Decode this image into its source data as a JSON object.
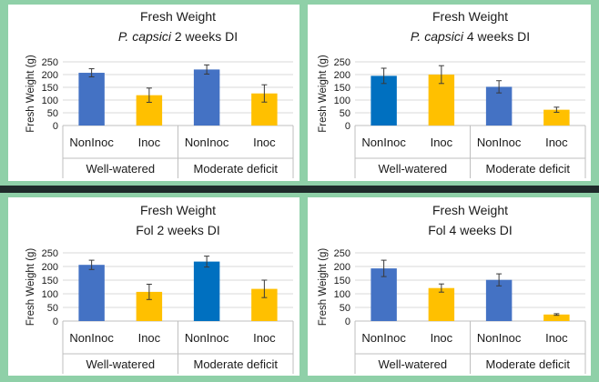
{
  "chart_data": [
    {
      "type": "bar",
      "title": "Fresh Weight",
      "subtitle_italic": "P. capsici",
      "subtitle_rest": " 2 weeks DI",
      "ylabel": "Fresh Weight (g)",
      "ylim": [
        0,
        250
      ],
      "yticks": [
        "0",
        "50",
        "100",
        "150",
        "200",
        "250"
      ],
      "categories": [
        "NonInoc",
        "Inoc",
        "NonInoc",
        "Inoc"
      ],
      "groups": [
        "Well-watered",
        "Moderate deficit"
      ],
      "values": [
        207,
        119,
        220,
        126
      ],
      "errors": [
        16,
        28,
        18,
        34
      ],
      "colors": [
        "#4472C4",
        "#FFC000",
        "#4472C4",
        "#FFC000"
      ],
      "grid": true
    },
    {
      "type": "bar",
      "title": "Fresh Weight",
      "subtitle_italic": "P. capsici",
      "subtitle_rest": " 4 weeks DI",
      "ylabel": "Fresh Weight (g)",
      "ylim": [
        0,
        250
      ],
      "yticks": [
        "0",
        "50",
        "100",
        "150",
        "200",
        "250"
      ],
      "categories": [
        "NonInoc",
        "Inoc",
        "NonInoc",
        "Inoc"
      ],
      "groups": [
        "Well-watered",
        "Moderate deficit"
      ],
      "values": [
        195,
        200,
        152,
        62
      ],
      "errors": [
        30,
        35,
        24,
        10
      ],
      "colors": [
        "#0070C0",
        "#FFC000",
        "#4472C4",
        "#FFC000"
      ],
      "grid": true
    },
    {
      "type": "bar",
      "title": "Fresh Weight",
      "subtitle_italic": "",
      "subtitle_rest": "Fol 2 weeks DI",
      "ylabel": "Fresh Weight (g)",
      "ylim": [
        0,
        250
      ],
      "yticks": [
        "0",
        "50",
        "100",
        "150",
        "200",
        "250"
      ],
      "categories": [
        "NonInoc",
        "Inoc",
        "NonInoc",
        "Inoc"
      ],
      "groups": [
        "Well-watered",
        "Moderate deficit"
      ],
      "values": [
        206,
        107,
        218,
        118
      ],
      "errors": [
        17,
        28,
        20,
        32
      ],
      "colors": [
        "#4472C4",
        "#FFC000",
        "#0070C0",
        "#FFC000"
      ],
      "grid": true
    },
    {
      "type": "bar",
      "title": "Fresh Weight",
      "subtitle_italic": "",
      "subtitle_rest": "Fol 4 weeks DI",
      "ylabel": "Fresh Weight (g)",
      "ylim": [
        0,
        250
      ],
      "yticks": [
        "0",
        "50",
        "100",
        "150",
        "200",
        "250"
      ],
      "categories": [
        "NonInoc",
        "Inoc",
        "NonInoc",
        "Inoc"
      ],
      "groups": [
        "Well-watered",
        "Moderate deficit"
      ],
      "values": [
        193,
        121,
        151,
        24
      ],
      "errors": [
        30,
        15,
        22,
        3
      ],
      "colors": [
        "#4472C4",
        "#FFC000",
        "#4472C4",
        "#FFC000"
      ],
      "grid": true
    }
  ]
}
